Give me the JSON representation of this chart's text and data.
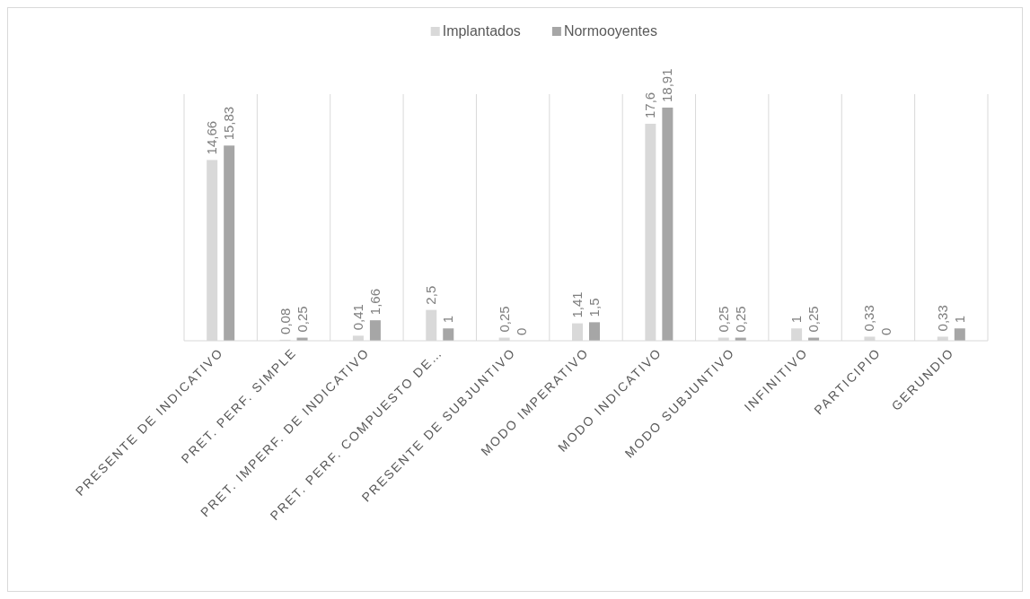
{
  "chart_data": {
    "type": "bar",
    "categories": [
      "PRESENTE DE INDICATIVO",
      "PRET. PERF. SIMPLE",
      "PRET. IMPERF. DE INDICATIVO",
      "PRET. PERF. COMPUESTO DE…",
      "PRESENTE DE SUBJUNTIVO",
      "MODO IMPERATIVO",
      "MODO INDICATIVO",
      "MODO SUBJUNTIVO",
      "INFINITIVO",
      "PARTICIPIO",
      "GERUNDIO"
    ],
    "series": [
      {
        "name": "Implantados",
        "color": "#d9d9d9",
        "values": [
          14.66,
          0.08,
          0.41,
          2.5,
          0.25,
          1.41,
          17.6,
          0.25,
          1,
          0.33,
          0.33
        ],
        "value_labels": [
          "14,66",
          "0,08",
          "0,41",
          "2,5",
          "0,25",
          "1,41",
          "17,6",
          "0,25",
          "1",
          "0,33",
          "0,33"
        ]
      },
      {
        "name": "Normooyentes",
        "color": "#a6a6a6",
        "values": [
          15.83,
          0.25,
          1.66,
          1,
          0,
          1.5,
          18.91,
          0.25,
          0.25,
          0,
          1
        ],
        "value_labels": [
          "15,83",
          "0,25",
          "1,66",
          "1",
          "0",
          "1,5",
          "18,91",
          "0,25",
          "0,25",
          "0",
          "1"
        ]
      }
    ],
    "ylim": [
      0,
      20
    ],
    "tick_labels": "x",
    "grid": "x",
    "legend": "top"
  }
}
